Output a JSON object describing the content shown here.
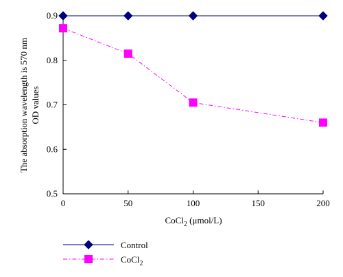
{
  "chart_data": {
    "type": "line",
    "x": [
      0,
      50,
      100,
      200
    ],
    "xlim": [
      0,
      200
    ],
    "ylim": [
      0.5,
      0.9
    ],
    "x_ticks": [
      0,
      50,
      100,
      150,
      200
    ],
    "y_ticks": [
      0.5,
      0.6,
      0.7,
      0.8,
      0.9
    ],
    "x_tick_labels": [
      "0",
      "50",
      "100",
      "150",
      "200"
    ],
    "y_tick_labels": [
      "0.5",
      "0.6",
      "0.7",
      "0.8",
      "0.9"
    ],
    "xlabel_main": "CoCl",
    "xlabel_sub": "2",
    "xlabel_rest": " (μmol/L)",
    "ylabel_line1": "The absorption wavelength is 570 nm",
    "ylabel_line2": "OD values",
    "grid": false,
    "legend_position": "bottom-left",
    "series": [
      {
        "name": "Control",
        "name_sub": "",
        "color": "#000080",
        "marker": "diamond",
        "line": "solid",
        "values": [
          0.9,
          0.9,
          0.9,
          0.9
        ]
      },
      {
        "name": "CoCl",
        "name_sub": "2",
        "color": "#ff00ff",
        "marker": "square",
        "line": "dash-dot",
        "values": [
          0.872,
          0.815,
          0.705,
          0.66
        ]
      }
    ]
  }
}
